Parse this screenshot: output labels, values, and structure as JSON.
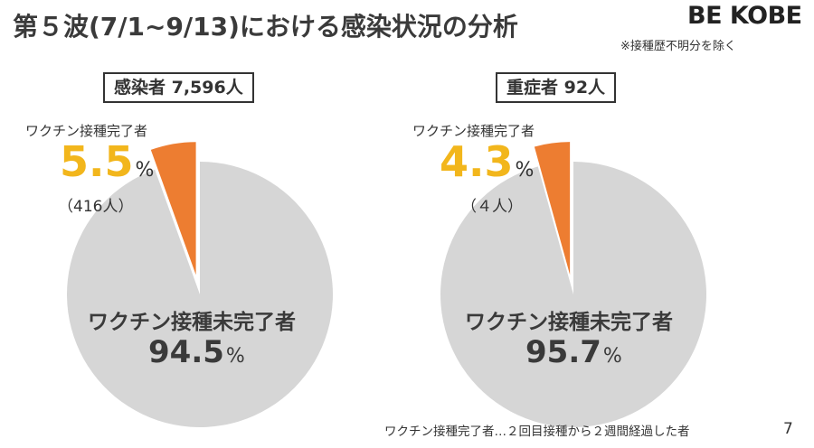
{
  "header": {
    "title": "第５波(7/1~9/13)における感染状況の分析",
    "note": "※接種歴不明分を除く",
    "logo": "BE KOBE"
  },
  "colors": {
    "vaccinated": "#ED7D31",
    "unvaccinated": "#D6D6D6",
    "highlight_pct": "#F2B61C"
  },
  "chart_data": [
    {
      "type": "pie",
      "heading": "感染者 7,596人",
      "slices": [
        {
          "label": "ワクチン接種完了者",
          "percent": 5.5,
          "count_text": "（416人）",
          "color": "#ED7D31"
        },
        {
          "label": "ワクチン接種未完了者",
          "percent": 94.5,
          "color": "#D6D6D6"
        }
      ],
      "percent_unit": "%"
    },
    {
      "type": "pie",
      "heading": "重症者 92人",
      "slices": [
        {
          "label": "ワクチン接種完了者",
          "percent": 4.3,
          "count_text": "（４人）",
          "color": "#ED7D31"
        },
        {
          "label": "ワクチン接種未完了者",
          "percent": 95.7,
          "color": "#D6D6D6"
        }
      ],
      "percent_unit": "%"
    }
  ],
  "footer": {
    "footnote": "ワクチン接種完了者…２回目接種から２週間経過した者",
    "page_number": "7"
  }
}
